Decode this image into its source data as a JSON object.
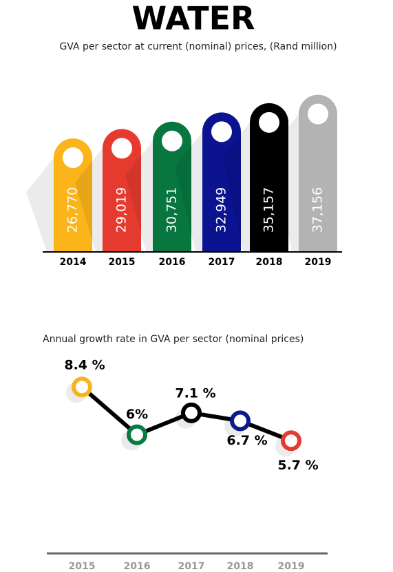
{
  "chart_data": [
    {
      "type": "bar",
      "title": "WATER",
      "subtitle": "GVA per sector at current (nominal) prices, (Rand million)",
      "categories": [
        "2014",
        "2015",
        "2016",
        "2017",
        "2018",
        "2019"
      ],
      "values": [
        26770,
        29019,
        30751,
        32949,
        35157,
        37156
      ],
      "value_labels": [
        "26,770",
        "29,019",
        "30,751",
        "32,949",
        "35,157",
        "37,156"
      ],
      "colors": [
        "#fbb41a",
        "#e63a2e",
        "#07773f",
        "#0b1390",
        "#000000",
        "#b3b3b3"
      ]
    },
    {
      "type": "line",
      "title": "Annual growth rate in GVA per sector (nominal prices)",
      "categories": [
        "2015",
        "2016",
        "2017",
        "2018",
        "2019"
      ],
      "values": [
        8.4,
        6,
        7.1,
        6.7,
        5.7
      ],
      "value_labels": [
        "8.4 %",
        "6%",
        "7.1 %",
        "6.7 %",
        "5.7 %"
      ],
      "color": "#000000",
      "marker_colors": [
        "#f6b41b",
        "#0a7a43",
        "#000000",
        "#0b1a8c",
        "#e23b2f"
      ]
    }
  ]
}
